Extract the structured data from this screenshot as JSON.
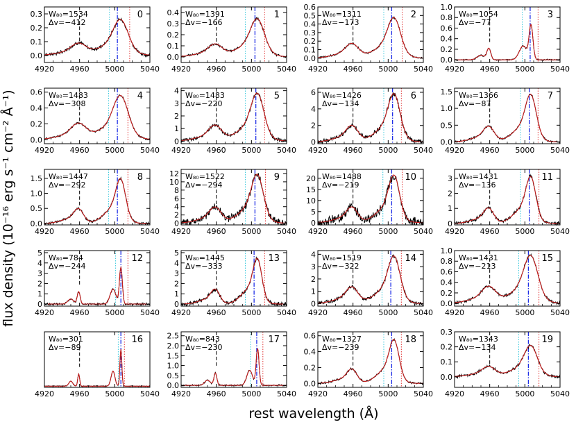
{
  "figure": {
    "ylabel": "flux density (10⁻¹⁶ erg s⁻¹ cm⁻² Å⁻¹)",
    "xlabel": "rest wavelength (Å)"
  },
  "colors": {
    "data": "#000000",
    "model": "#c81e1e",
    "center_line": "#1e2ee6",
    "cyan_line": "#37c8dc",
    "red_line": "#e03030",
    "ref_line": "#000000"
  },
  "chart_data": [
    {
      "type": "line",
      "panel": 0,
      "w80": "W₈₀=1534",
      "dv": "Δv=−412",
      "label": "0",
      "xlim": [
        4920,
        5040
      ],
      "xticks": [
        "4920",
        "4960",
        "5000",
        "5040"
      ],
      "ylim": [
        -0.05,
        0.35
      ],
      "yticks": [
        "0.0",
        "0.1",
        "0.2",
        "0.3"
      ],
      "peak": 0.27,
      "ratio": 0.33,
      "width": 15,
      "noise": 0.035,
      "lines": [
        4960,
        4994,
        5003,
        5017
      ]
    },
    {
      "type": "line",
      "panel": 1,
      "w80": "W₈₀=1391",
      "dv": "Δv=−166",
      "label": "1",
      "xlim": [
        4920,
        5040
      ],
      "xticks": [
        "4920",
        "4960",
        "5000",
        "5040"
      ],
      "ylim": [
        -0.05,
        0.45
      ],
      "yticks": [
        "0.0",
        "0.1",
        "0.2",
        "0.3",
        "0.4"
      ],
      "peak": 0.36,
      "ratio": 0.33,
      "width": 14,
      "noise": 0.025,
      "lines": [
        4960,
        4993,
        5004,
        5015
      ]
    },
    {
      "type": "line",
      "panel": 2,
      "w80": "W₈₀=1311",
      "dv": "Δv=−173",
      "label": "2",
      "xlim": [
        4920,
        5040
      ],
      "xticks": [
        "4920",
        "4960",
        "5000",
        "5040"
      ],
      "ylim": [
        -0.05,
        0.6
      ],
      "yticks": [
        "0.0",
        "0.1",
        "0.2",
        "0.3",
        "0.4",
        "0.5",
        "0.6"
      ],
      "peak": 0.5,
      "ratio": 0.36,
      "width": 13,
      "noise": 0.02,
      "lines": [
        4960,
        4995,
        5004,
        5016
      ]
    },
    {
      "type": "line",
      "panel": 3,
      "w80": "W₈₀=1054",
      "dv": "Δv=−77",
      "label": "3",
      "xlim": [
        4920,
        5040
      ],
      "xticks": [
        "4920",
        "4960",
        "5000",
        "5040"
      ],
      "ylim": [
        -0.05,
        1.0
      ],
      "yticks": [
        "0.0",
        "0.2",
        "0.4",
        "0.6",
        "0.8",
        "1.0"
      ],
      "peak": 0.9,
      "ratio": 0.33,
      "width": 4,
      "noise": 0.015,
      "lines": [
        4960,
        4997,
        5006,
        5015
      ]
    },
    {
      "type": "line",
      "panel": 4,
      "w80": "W₈₀=1483",
      "dv": "Δv=−308",
      "label": "4",
      "xlim": [
        4920,
        5040
      ],
      "xticks": [
        "4920",
        "4960",
        "5000",
        "5040"
      ],
      "ylim": [
        -0.05,
        0.65
      ],
      "yticks": [
        "0.0",
        "0.2",
        "0.4",
        "0.6"
      ],
      "peak": 0.58,
      "ratio": 0.36,
      "width": 15,
      "noise": 0.02,
      "lines": [
        4960,
        4993,
        5003,
        5015
      ]
    },
    {
      "type": "line",
      "panel": 5,
      "w80": "W₈₀=1483",
      "dv": "Δv=−220",
      "label": "5",
      "xlim": [
        4920,
        5040
      ],
      "xticks": [
        "4920",
        "4960",
        "5000",
        "5040"
      ],
      "ylim": [
        -0.2,
        4.2
      ],
      "yticks": [
        "0",
        "1",
        "2",
        "3",
        "4"
      ],
      "peak": 4.0,
      "ratio": 0.33,
      "width": 13,
      "noise": 0.04,
      "lines": [
        4960,
        4993,
        5005,
        5015
      ]
    },
    {
      "type": "line",
      "panel": 6,
      "w80": "W₈₀=1426",
      "dv": "Δv=−134",
      "label": "6",
      "xlim": [
        4920,
        5040
      ],
      "xticks": [
        "4920",
        "4960",
        "5000",
        "5040"
      ],
      "ylim": [
        -0.2,
        6.5
      ],
      "yticks": [
        "0",
        "2",
        "4",
        "6"
      ],
      "peak": 6.2,
      "ratio": 0.34,
      "width": 12,
      "noise": 0.05,
      "lines": [
        4960,
        4995,
        5005,
        5015
      ]
    },
    {
      "type": "line",
      "panel": 7,
      "w80": "W₈₀=1366",
      "dv": "Δv=−87",
      "label": "7",
      "xlim": [
        4920,
        5040
      ],
      "xticks": [
        "4920",
        "4960",
        "5000",
        "5040"
      ],
      "ylim": [
        -0.05,
        1.6
      ],
      "yticks": [
        "0.0",
        "0.5",
        "1.0",
        "1.5"
      ],
      "peak": 1.52,
      "ratio": 0.33,
      "width": 11,
      "noise": 0.02,
      "lines": [
        4960,
        4995,
        5005,
        5015
      ]
    },
    {
      "type": "line",
      "panel": 8,
      "w80": "W₈₀=1447",
      "dv": "Δv=−292",
      "label": "8",
      "xlim": [
        4920,
        5040
      ],
      "xticks": [
        "4920",
        "4960",
        "5000",
        "5040"
      ],
      "ylim": [
        -0.05,
        1.8
      ],
      "yticks": [
        "0.0",
        "0.5",
        "1.0",
        "1.5"
      ],
      "peak": 1.62,
      "ratio": 0.33,
      "width": 10,
      "noise": 0.025,
      "lines": [
        4960,
        4993,
        5003,
        5015
      ]
    },
    {
      "type": "line",
      "panel": 9,
      "w80": "W₈₀=1522",
      "dv": "Δv=−294",
      "label": "9",
      "xlim": [
        4920,
        5040
      ],
      "xticks": [
        "4920",
        "4960",
        "5000",
        "5040"
      ],
      "ylim": [
        -0.4,
        13
      ],
      "yticks": [
        "0",
        "2",
        "4",
        "6",
        "8",
        "10",
        "12"
      ],
      "peak": 12.5,
      "ratio": 0.33,
      "width": 12,
      "noise": 0.08,
      "lines": [
        4960,
        4993,
        5004,
        5016
      ]
    },
    {
      "type": "line",
      "panel": 10,
      "w80": "W₈₀=1488",
      "dv": "Δv=−219",
      "label": "10",
      "xlim": [
        4920,
        5040
      ],
      "xticks": [
        "4920",
        "4960",
        "5000",
        "5040"
      ],
      "ylim": [
        -1,
        24
      ],
      "yticks": [
        "0",
        "5",
        "10",
        "15",
        "20"
      ],
      "peak": 23,
      "ratio": 0.33,
      "width": 11,
      "noise": 0.1,
      "lines": [
        4960,
        4994,
        5004,
        5016
      ]
    },
    {
      "type": "line",
      "panel": 11,
      "w80": "W₈₀=1431",
      "dv": "Δv=−136",
      "label": "11",
      "xlim": [
        4920,
        5040
      ],
      "xticks": [
        "4920",
        "4960",
        "5000",
        "5040"
      ],
      "ylim": [
        -0.1,
        3.6
      ],
      "yticks": [
        "0",
        "1",
        "2",
        "3"
      ],
      "peak": 3.4,
      "ratio": 0.33,
      "width": 10,
      "noise": 0.04,
      "lines": [
        4960,
        4995,
        5005,
        5016
      ]
    },
    {
      "type": "line",
      "panel": 12,
      "w80": "W₈₀=784",
      "dv": "Δv=−244",
      "label": "12",
      "xlim": [
        4920,
        5040
      ],
      "xticks": [
        "4920",
        "4960",
        "5000",
        "5040"
      ],
      "ylim": [
        -0.2,
        5.2
      ],
      "yticks": [
        "0",
        "1",
        "2",
        "3",
        "4",
        "5"
      ],
      "peak": 5.0,
      "ratio": 0.34,
      "width": 3,
      "noise": 0.02,
      "lines": [
        4960,
        5001,
        5007,
        5015
      ]
    },
    {
      "type": "line",
      "panel": 13,
      "w80": "W₈₀=1445",
      "dv": "Δv=−333",
      "label": "13",
      "xlim": [
        4920,
        5040
      ],
      "xticks": [
        "4920",
        "4960",
        "5000",
        "5040"
      ],
      "ylim": [
        -0.2,
        5.2
      ],
      "yticks": [
        "0",
        "1",
        "2",
        "3",
        "4",
        "5"
      ],
      "peak": 4.9,
      "ratio": 0.33,
      "width": 9,
      "noise": 0.04,
      "lines": [
        4960,
        4993,
        5003,
        5015
      ]
    },
    {
      "type": "line",
      "panel": 14,
      "w80": "W₈₀=1519",
      "dv": "Δv=−322",
      "label": "14",
      "xlim": [
        4920,
        5040
      ],
      "xticks": [
        "4920",
        "4960",
        "5000",
        "5040"
      ],
      "ylim": [
        -0.2,
        4.3
      ],
      "yticks": [
        "0",
        "1",
        "2",
        "3",
        "4"
      ],
      "peak": 4.1,
      "ratio": 0.35,
      "width": 12,
      "noise": 0.04,
      "lines": [
        4960,
        4993,
        5003,
        5015
      ]
    },
    {
      "type": "line",
      "panel": 15,
      "w80": "W₈₀=1431",
      "dv": "Δv=−213",
      "label": "15",
      "xlim": [
        4920,
        5040
      ],
      "xticks": [
        "4920",
        "4960",
        "5000",
        "5040"
      ],
      "ylim": [
        -0.05,
        1.0
      ],
      "yticks": [
        "0.0",
        "0.2",
        "0.4",
        "0.6",
        "0.8",
        "1.0"
      ],
      "peak": 0.95,
      "ratio": 0.35,
      "width": 14,
      "noise": 0.03,
      "lines": [
        4960,
        4993,
        5004,
        5016
      ]
    },
    {
      "type": "line",
      "panel": 16,
      "w80": "W₈₀=301",
      "dv": "Δv=−89",
      "label": "16",
      "xlim": [
        4920,
        5040
      ],
      "xticks": [
        "4920",
        "4960",
        "5000",
        "5040"
      ],
      "ylim": [
        -0.1,
        4.5
      ],
      "yticks": [],
      "peak": 4.3,
      "ratio": 0.33,
      "width": 2,
      "noise": 0.01,
      "lines": [
        4960,
        5004,
        5007,
        5011
      ]
    },
    {
      "type": "line",
      "panel": 17,
      "w80": "W₈₀=843",
      "dv": "Δv=−230",
      "label": "17",
      "xlim": [
        4920,
        5040
      ],
      "xticks": [
        "4920",
        "4960",
        "5000",
        "5040"
      ],
      "ylim": [
        -0.1,
        2.7
      ],
      "yticks": [
        "0.0",
        "0.5",
        "1.0",
        "1.5",
        "2.0",
        "2.5"
      ],
      "peak": 2.6,
      "ratio": 0.34,
      "width": 3,
      "noise": 0.015,
      "lines": [
        4960,
        4999,
        5006,
        5013
      ]
    },
    {
      "type": "line",
      "panel": 18,
      "w80": "W₈₀=1327",
      "dv": "Δv=−239",
      "label": "18",
      "xlim": [
        4920,
        5040
      ],
      "xticks": [
        "4920",
        "4960",
        "5000",
        "5040"
      ],
      "ylim": [
        -0.05,
        0.65
      ],
      "yticks": [
        "0.0",
        "0.2",
        "0.4",
        "0.6"
      ],
      "peak": 0.6,
      "ratio": 0.33,
      "width": 10,
      "noise": 0.02,
      "lines": [
        4960,
        4995,
        5004,
        5015
      ]
    },
    {
      "type": "line",
      "panel": 19,
      "w80": "W₈₀=1343",
      "dv": "Δv=−134",
      "label": "19",
      "xlim": [
        4920,
        5040
      ],
      "xticks": [
        "4920",
        "4960",
        "5000",
        "5040"
      ],
      "ylim": [
        -0.07,
        0.3
      ],
      "yticks": [
        "0.0",
        "0.1",
        "0.2",
        "0.3"
      ],
      "peak": 0.22,
      "ratio": 0.33,
      "width": 13,
      "noise": 0.03,
      "lines": [
        4960,
        4993,
        5004,
        5016
      ]
    }
  ]
}
